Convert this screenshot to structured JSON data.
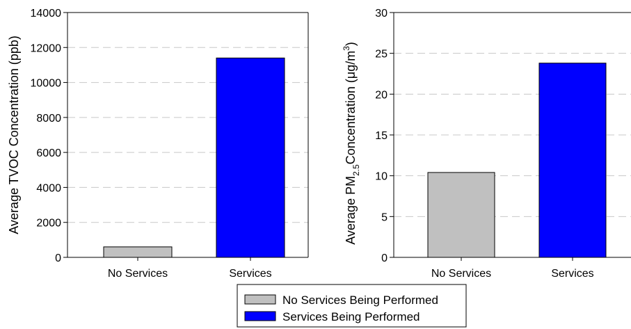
{
  "chart_data": [
    {
      "type": "bar",
      "categories": [
        "No Services",
        "Services"
      ],
      "values": [
        600,
        11400
      ],
      "ylabel": "Average TVOC Concentration (ppb)",
      "ylim": [
        0,
        14000
      ],
      "yticks": [
        "0",
        "2000",
        "4000",
        "6000",
        "8000",
        "10000",
        "12000",
        "14000"
      ],
      "grid": "horizontal dashed",
      "bar_colors": [
        "#c0c0c0",
        "#0000ff"
      ]
    },
    {
      "type": "bar",
      "categories": [
        "No Services",
        "Services"
      ],
      "values": [
        10.4,
        23.8
      ],
      "ylabel": {
        "pre": "Average PM",
        "sub": "2.5",
        "mid": "Concentration (μg/m",
        "sup": "3",
        "post": ")"
      },
      "ylim": [
        0,
        30
      ],
      "yticks": [
        "0",
        "5",
        "10",
        "15",
        "20",
        "25",
        "30"
      ],
      "grid": "horizontal dashed",
      "bar_colors": [
        "#c0c0c0",
        "#0000ff"
      ]
    }
  ],
  "legend": {
    "placement": "bottom-center",
    "items": [
      {
        "label": "No Services Being Performed",
        "color": "#c0c0c0"
      },
      {
        "label": "Services Being Performed",
        "color": "#0000ff"
      }
    ]
  }
}
